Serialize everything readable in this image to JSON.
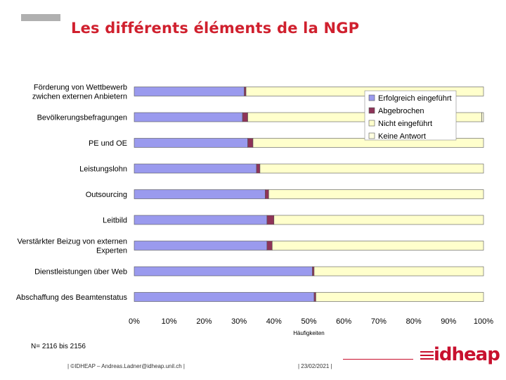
{
  "slide": {
    "title": "Les différents éléments de la NGP",
    "n_note": "N= 2116 bis 2156",
    "footer_copyright": "| ©IDHEAP – Andreas.Ladner@idheap.unil.ch |",
    "footer_date": "| 23/02/2021 |",
    "logo_text": "idheap"
  },
  "colors": {
    "title": "#d0202e",
    "erfolgreich": "#9a9aee",
    "abgebrochen": "#8e3358",
    "nicht": "#ffffcc",
    "keine": "#ffffe0",
    "logo": "#c8102e"
  },
  "chart_data": {
    "type": "bar",
    "orientation": "horizontal",
    "stacked": true,
    "xlabel": "Häufigkeiten",
    "xlim": [
      0,
      100
    ],
    "xticks": [
      "0%",
      "10%",
      "20%",
      "30%",
      "40%",
      "50%",
      "60%",
      "70%",
      "80%",
      "90%",
      "100%"
    ],
    "legend_position": "top-right",
    "categories": [
      [
        "Förderung von Wettbewerb",
        "zwichen externen Anbietern"
      ],
      [
        "Bevölkerungsbefragungen"
      ],
      [
        "PE und OE"
      ],
      [
        "Leistungslohn"
      ],
      [
        "Outsourcing"
      ],
      [
        "Leitbild"
      ],
      [
        "Verstärkter Beizug von externen",
        "Experten"
      ],
      [
        "Dienstleistungen über Web"
      ],
      [
        "Abschaffung des Beamtenstatus"
      ]
    ],
    "series": [
      {
        "name": "Erfolgreich eingeführt",
        "values": [
          31.5,
          31.0,
          32.5,
          35.0,
          37.5,
          38.0,
          38.0,
          51.0,
          51.5
        ]
      },
      {
        "name": "Abgebrochen",
        "values": [
          0.5,
          1.5,
          1.5,
          1.0,
          1.0,
          2.0,
          1.5,
          0.5,
          0.5
        ]
      },
      {
        "name": "Nicht eingeführt",
        "values": [
          68.0,
          67.0,
          66.0,
          64.0,
          61.5,
          60.0,
          60.5,
          48.5,
          48.0
        ]
      },
      {
        "name": "Keine Antwort",
        "values": [
          0,
          0.5,
          0,
          0,
          0,
          0,
          0,
          0,
          0
        ]
      }
    ]
  }
}
